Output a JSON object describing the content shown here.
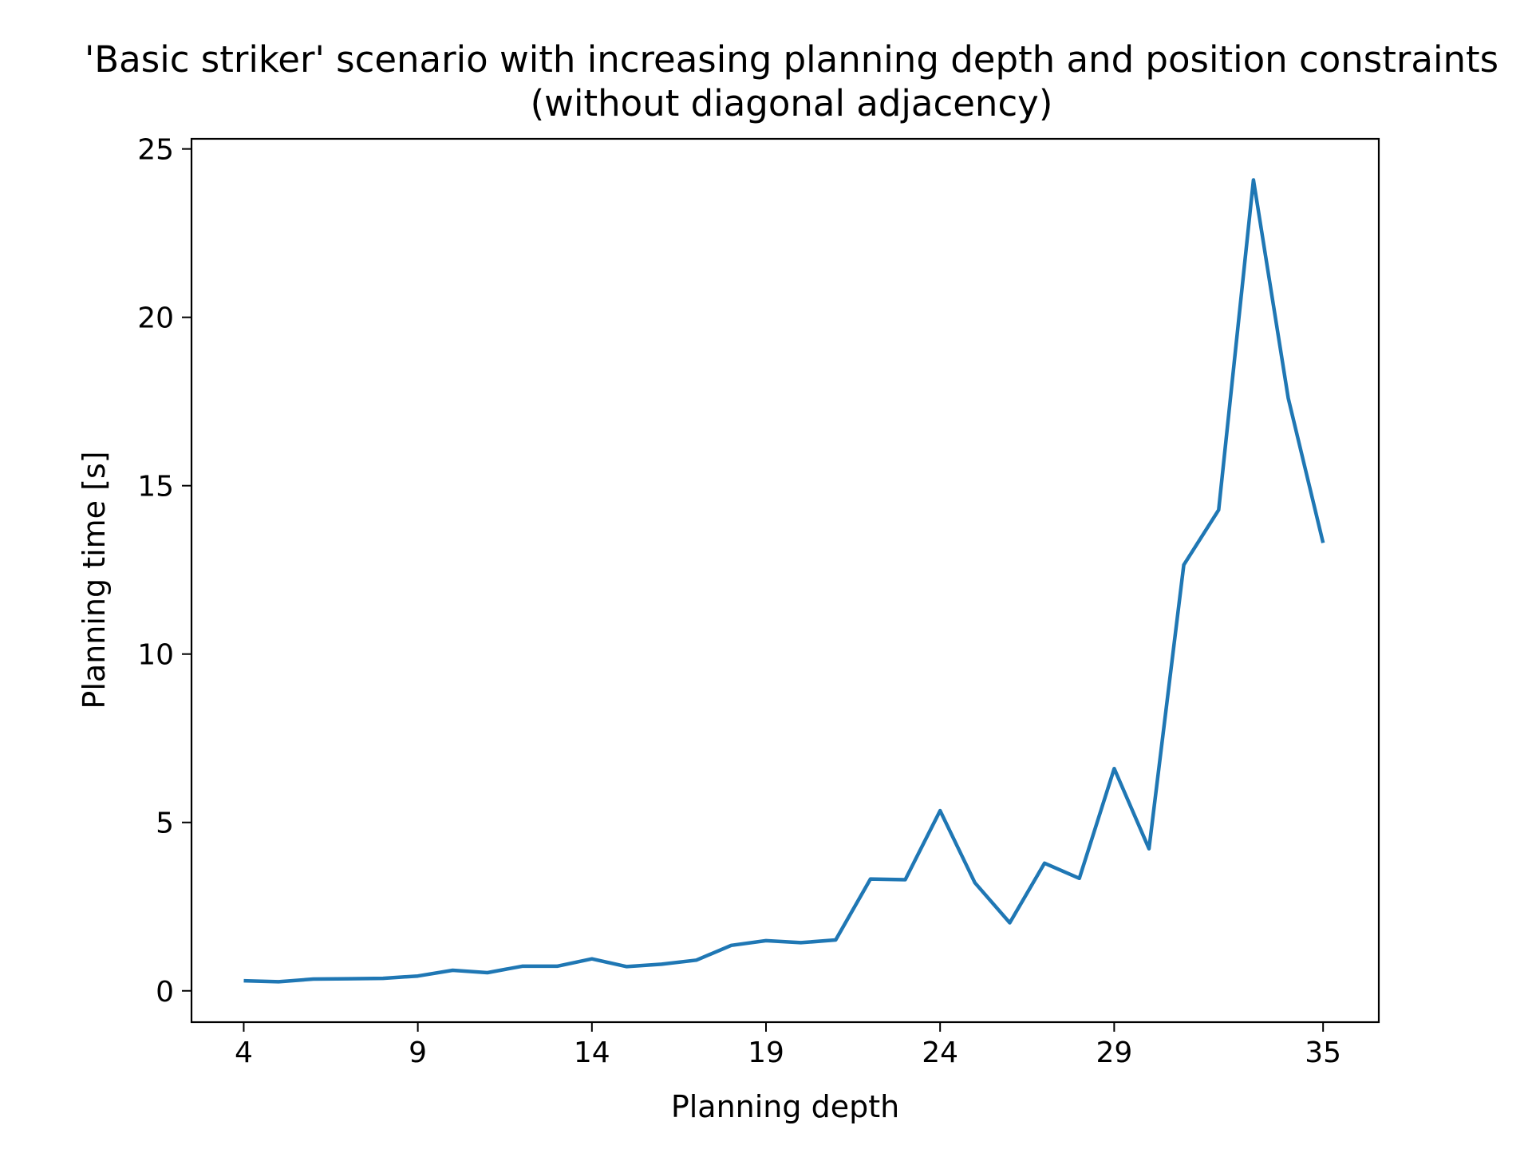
{
  "chart_data": {
    "type": "line",
    "title": "'Basic striker' scenario with increasing planning depth and position constraints",
    "subtitle": "(without diagonal adjacency)",
    "xlabel": "Planning depth",
    "ylabel": "Planning time [s]",
    "xlim": [
      2.5,
      36.6
    ],
    "ylim": [
      -0.93,
      25.3
    ],
    "xticks": [
      4,
      9,
      14,
      19,
      24,
      29,
      35
    ],
    "yticks": [
      0,
      5,
      10,
      15,
      20,
      25
    ],
    "grid": false,
    "legend": "none",
    "series": [
      {
        "color": "#1f77b4",
        "x": [
          4,
          5,
          6,
          7,
          8,
          9,
          10,
          11,
          12,
          13,
          14,
          15,
          16,
          17,
          18,
          19,
          20,
          21,
          22,
          23,
          24,
          25,
          26,
          27,
          28,
          29,
          30,
          31,
          32,
          33,
          34,
          35
        ],
        "y": [
          0.3,
          0.27,
          0.35,
          0.36,
          0.37,
          0.44,
          0.61,
          0.54,
          0.73,
          0.73,
          0.95,
          0.72,
          0.79,
          0.91,
          1.35,
          1.49,
          1.43,
          1.51,
          3.32,
          3.3,
          5.35,
          3.21,
          2.02,
          3.79,
          3.34,
          6.6,
          4.22,
          12.65,
          14.28,
          24.08,
          17.6,
          13.3
        ]
      }
    ]
  }
}
